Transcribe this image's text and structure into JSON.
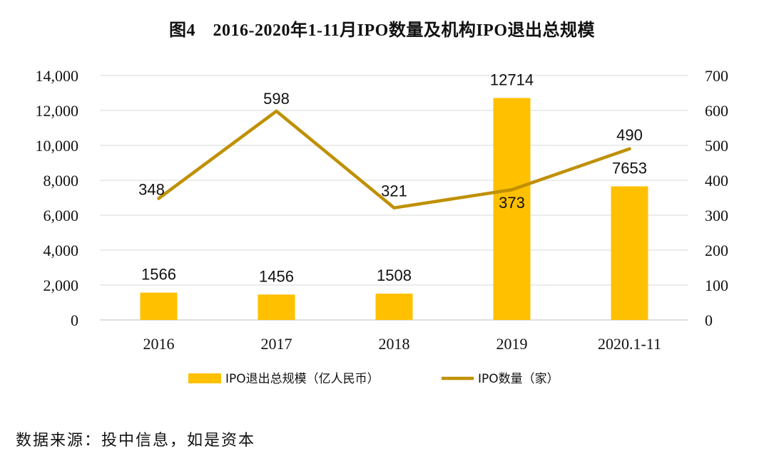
{
  "chart_data": {
    "type": "bar+line",
    "title": "图4　2016-2020年1-11月IPO数量及机构IPO退出总规模",
    "categories": [
      "2016",
      "2017",
      "2018",
      "2019",
      "2020.1-11"
    ],
    "series": [
      {
        "name": "IPO退出总规模（亿人民币）",
        "type": "bar",
        "axis": "left",
        "values": [
          1566,
          1456,
          1508,
          12714,
          7653
        ],
        "color": "#FFC000"
      },
      {
        "name": "IPO数量（家）",
        "type": "line",
        "axis": "right",
        "values": [
          348,
          598,
          321,
          373,
          490
        ],
        "color": "#BF9000"
      }
    ],
    "y_left": {
      "min": 0,
      "max": 14000,
      "step": 2000,
      "tick_labels": [
        "0",
        "2,000",
        "4,000",
        "6,000",
        "8,000",
        "10,000",
        "12,000",
        "14,000"
      ]
    },
    "y_right": {
      "min": 0,
      "max": 700,
      "step": 100,
      "tick_labels": [
        "0",
        "100",
        "200",
        "300",
        "400",
        "500",
        "600",
        "700"
      ]
    },
    "grid": true,
    "legend_position": "bottom"
  },
  "source": "数据来源：投中信息，如是资本"
}
